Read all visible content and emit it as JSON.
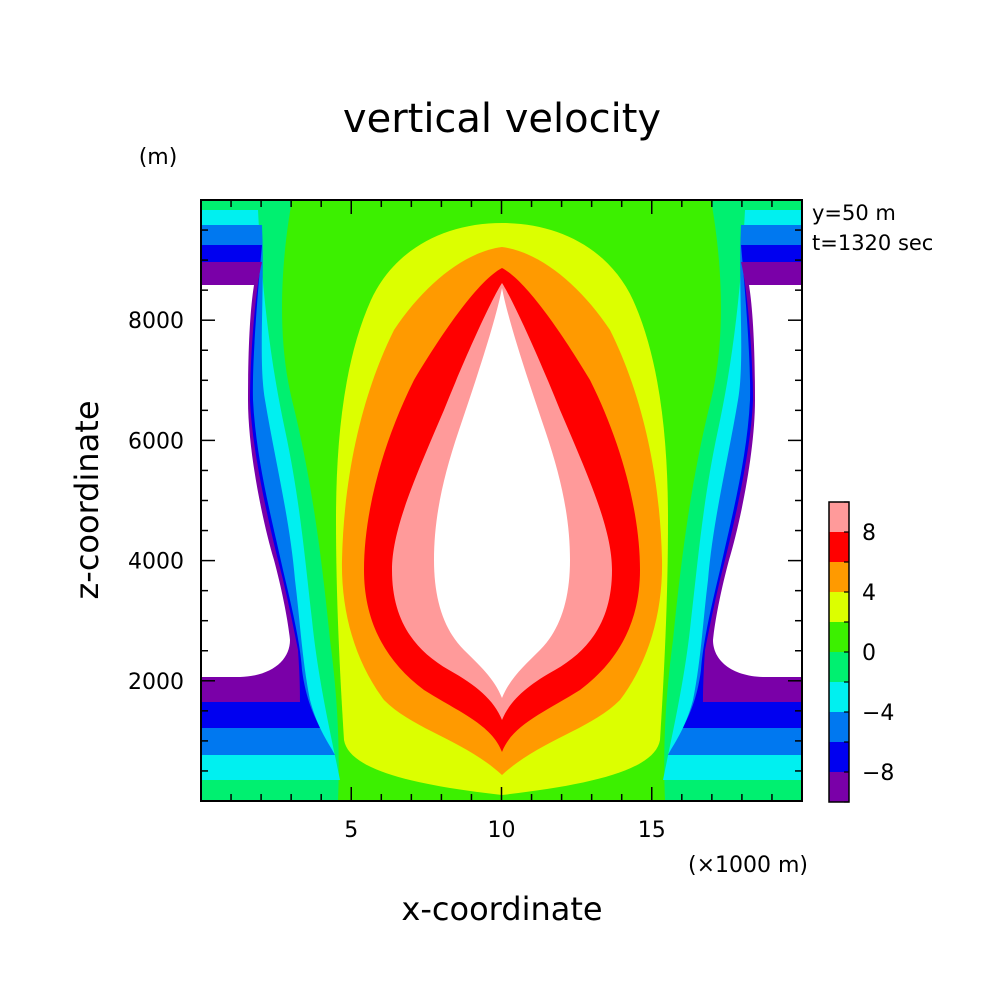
{
  "chart_data": {
    "type": "heatmap",
    "subtype": "filled-contour",
    "title": "vertical velocity",
    "xlabel": "x-coordinate",
    "ylabel": "z-coordinate",
    "x_unit": "(×1000 m)",
    "y_unit": "(m)",
    "annotations": [
      "y=50 m",
      "t=1320 sec"
    ],
    "xlim": [
      0,
      20
    ],
    "ylim": [
      0,
      10000
    ],
    "x_ticks": [
      5,
      10,
      15
    ],
    "y_ticks": [
      2000,
      4000,
      6000,
      8000
    ],
    "colorbar": {
      "levels": [
        -10,
        -8,
        -6,
        -4,
        -2,
        0,
        2,
        4,
        6,
        8,
        10
      ],
      "tick_labels": [
        "8",
        "4",
        "0",
        "−4",
        "−8"
      ],
      "tick_values": [
        8,
        4,
        0,
        -4,
        -8
      ],
      "colors": [
        "#7a00a8",
        "#0000f0",
        "#0078f0",
        "#00f0f0",
        "#00f070",
        "#3cf000",
        "#dcff00",
        "#ff9a00",
        "#ff0000",
        "#ff9a9a"
      ],
      "above_max_color": "#ffffff",
      "below_min_color": "#ffffff"
    },
    "features": [
      {
        "name": "updraft core",
        "center_x": 10,
        "min_w_exceeds": 10,
        "z_range": [
          1700,
          8600
        ]
      },
      {
        "name": "downdraft left",
        "x_range": [
          0,
          3
        ],
        "min_w_below": -10,
        "z_range": [
          2100,
          8600
        ]
      },
      {
        "name": "downdraft right",
        "x_range": [
          17,
          20
        ],
        "min_w_below": -10,
        "z_range": [
          2100,
          8600
        ]
      }
    ]
  }
}
